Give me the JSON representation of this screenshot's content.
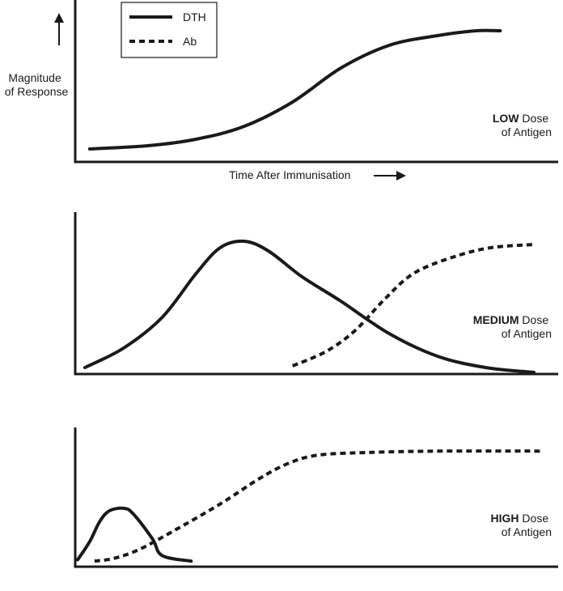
{
  "chart_data": [
    {
      "type": "line",
      "panel": "low",
      "label_bold": "LOW",
      "label_rest": " Dose",
      "label_line2": "of Antigen",
      "ylabel": [
        "Magnitude",
        "of Response"
      ],
      "xlabel": "Time After Immunisation",
      "legend": {
        "placement": "top-left",
        "items": [
          {
            "name": "DTH",
            "style": "solid"
          },
          {
            "name": "Ab",
            "style": "dashed"
          }
        ]
      },
      "series": [
        {
          "name": "DTH",
          "style": "solid",
          "points": [
            [
              0.03,
              0.08
            ],
            [
              0.15,
              0.1
            ],
            [
              0.25,
              0.14
            ],
            [
              0.35,
              0.22
            ],
            [
              0.45,
              0.37
            ],
            [
              0.55,
              0.58
            ],
            [
              0.65,
              0.72
            ],
            [
              0.75,
              0.78
            ],
            [
              0.83,
              0.81
            ],
            [
              0.88,
              0.81
            ]
          ]
        }
      ]
    },
    {
      "type": "line",
      "panel": "medium",
      "label_bold": "MEDIUM",
      "label_rest": " Dose",
      "label_line2": "of Antigen",
      "series": [
        {
          "name": "DTH",
          "style": "solid",
          "points": [
            [
              0.02,
              0.04
            ],
            [
              0.1,
              0.16
            ],
            [
              0.18,
              0.35
            ],
            [
              0.25,
              0.62
            ],
            [
              0.3,
              0.78
            ],
            [
              0.35,
              0.82
            ],
            [
              0.4,
              0.76
            ],
            [
              0.47,
              0.6
            ],
            [
              0.55,
              0.45
            ],
            [
              0.65,
              0.25
            ],
            [
              0.75,
              0.11
            ],
            [
              0.85,
              0.04
            ],
            [
              0.95,
              0.01
            ]
          ]
        },
        {
          "name": "Ab",
          "style": "dashed",
          "points": [
            [
              0.45,
              0.05
            ],
            [
              0.52,
              0.14
            ],
            [
              0.58,
              0.27
            ],
            [
              0.64,
              0.46
            ],
            [
              0.7,
              0.62
            ],
            [
              0.78,
              0.72
            ],
            [
              0.86,
              0.78
            ],
            [
              0.95,
              0.8
            ]
          ]
        }
      ]
    },
    {
      "type": "line",
      "panel": "high",
      "label_bold": "HIGH",
      "label_rest": " Dose",
      "label_line2": "of Antigen",
      "series": [
        {
          "name": "DTH",
          "style": "solid",
          "points": [
            [
              0.005,
              0.05
            ],
            [
              0.03,
              0.18
            ],
            [
              0.05,
              0.32
            ],
            [
              0.07,
              0.4
            ],
            [
              0.1,
              0.42
            ],
            [
              0.12,
              0.38
            ],
            [
              0.16,
              0.2
            ],
            [
              0.18,
              0.08
            ],
            [
              0.24,
              0.04
            ]
          ]
        },
        {
          "name": "Ab",
          "style": "dashed",
          "points": [
            [
              0.04,
              0.04
            ],
            [
              0.08,
              0.06
            ],
            [
              0.13,
              0.12
            ],
            [
              0.2,
              0.25
            ],
            [
              0.3,
              0.45
            ],
            [
              0.38,
              0.63
            ],
            [
              0.44,
              0.74
            ],
            [
              0.5,
              0.8
            ],
            [
              0.6,
              0.82
            ],
            [
              0.75,
              0.83
            ],
            [
              0.97,
              0.83
            ]
          ]
        }
      ]
    }
  ]
}
